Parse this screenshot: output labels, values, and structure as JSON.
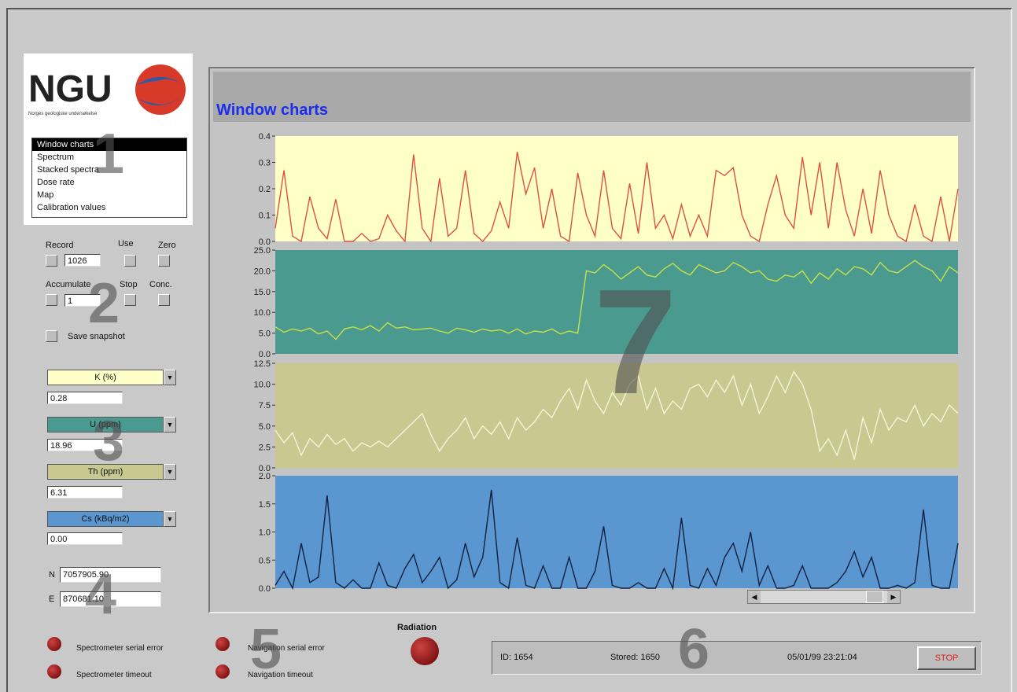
{
  "logo": {
    "text": "NGU",
    "subtitle": "Norges geologiske undersøkelse"
  },
  "menu": {
    "items": [
      "Window charts",
      "Spectrum",
      "Stacked spectra",
      "Dose rate",
      "Map",
      "Calibration values"
    ]
  },
  "controls": {
    "record": {
      "label": "Record",
      "value": "1026"
    },
    "use": "Use",
    "zero": "Zero",
    "accumulate": {
      "label": "Accumulate",
      "value": "1"
    },
    "stop": "Stop",
    "conc": "Conc.",
    "save": "Save snapshot"
  },
  "channels": [
    {
      "name": "K (%)",
      "value": "0.28",
      "color": "#ffffc8"
    },
    {
      "name": "U (ppm)",
      "value": "18.96",
      "color": "#4a9a90"
    },
    {
      "name": "Th (ppm)",
      "value": "6.31",
      "color": "#c8c890"
    },
    {
      "name": "Cs (kBq/m2)",
      "value": "0.00",
      "color": "#5a96d0"
    }
  ],
  "position": {
    "n": {
      "label": "N",
      "value": "7057905.90"
    },
    "e": {
      "label": "E",
      "value": "870681.10"
    }
  },
  "indicators": [
    "Spectrometer serial error",
    "Spectrometer timeout",
    "Navigation serial error",
    "Navigation timeout"
  ],
  "radiation": "Radiation",
  "status": {
    "id": "ID: 1654",
    "stored": "Stored: 1650",
    "time": "05/01/99 23:21:04",
    "stop": "STOP"
  },
  "annotations": [
    "1",
    "2",
    "3",
    "4",
    "5",
    "6",
    "7"
  ],
  "panel": {
    "title": "Window charts",
    "charts": [
      {
        "background": "#ffffc8",
        "color": "#e05040",
        "ylim": [
          0,
          0.4
        ],
        "yticks": [
          {
            "value": 0,
            "label": "0.0"
          },
          {
            "value": 0.1,
            "label": "0.1"
          },
          {
            "value": 0.2,
            "label": "0.2"
          },
          {
            "value": 0.3,
            "label": "0.3"
          },
          {
            "value": 0.4,
            "label": "0.4"
          }
        ],
        "values": [
          0.05,
          0.27,
          0.02,
          0,
          0.17,
          0.05,
          0.01,
          0.16,
          0,
          0,
          0.03,
          0,
          0.01,
          0.1,
          0.04,
          0,
          0.33,
          0.05,
          0,
          0.24,
          0.02,
          0.05,
          0.27,
          0.03,
          0,
          0.04,
          0.15,
          0.05,
          0.34,
          0.18,
          0.28,
          0.05,
          0.2,
          0.02,
          0,
          0.26,
          0.1,
          0.02,
          0.27,
          0.05,
          0.01,
          0.22,
          0.03,
          0.3,
          0.05,
          0.1,
          0.01,
          0.14,
          0.02,
          0.1,
          0.02,
          0.27,
          0.25,
          0.28,
          0.1,
          0.02,
          0,
          0.14,
          0.25,
          0.1,
          0.05,
          0.32,
          0.1,
          0.3,
          0.05,
          0.3,
          0.12,
          0.02,
          0.2,
          0.03,
          0.27,
          0.1,
          0.02,
          0,
          0.14,
          0.02,
          0,
          0.17,
          0,
          0.2
        ]
      },
      {
        "background": "#4a9a90",
        "color": "#c8e048",
        "ylim": [
          0,
          25
        ],
        "yticks": [
          {
            "value": 0,
            "label": "0.0"
          },
          {
            "value": 5,
            "label": "5.0"
          },
          {
            "value": 10,
            "label": "10.0"
          },
          {
            "value": 15,
            "label": "15.0"
          },
          {
            "value": 20,
            "label": "20.0"
          },
          {
            "value": 25,
            "label": "25.0"
          }
        ],
        "values": [
          6.5,
          5.2,
          6.0,
          5.5,
          6.2,
          4.8,
          5.5,
          3.5,
          6.0,
          6.5,
          5.8,
          6.8,
          5.5,
          7.5,
          6.2,
          6.5,
          5.8,
          6.0,
          6.2,
          5.5,
          5.0,
          6.2,
          5.8,
          5.2,
          6.0,
          5.5,
          5.8,
          5.0,
          6.0,
          4.8,
          5.5,
          5.2,
          6.0,
          4.8,
          5.5,
          5.0,
          20.0,
          19.5,
          21.5,
          20.0,
          18.0,
          19.5,
          21.0,
          19.0,
          18.5,
          20.5,
          21.8,
          20.0,
          19.0,
          21.5,
          20.5,
          19.5,
          20.0,
          22.0,
          21.0,
          19.5,
          20.0,
          18.0,
          17.5,
          19.0,
          18.5,
          20.0,
          17.0,
          19.5,
          18.0,
          20.5,
          19.0,
          21.0,
          20.5,
          19.0,
          22.0,
          20.0,
          19.5,
          21.0,
          22.5,
          21.0,
          20.0,
          17.5,
          21.0,
          19.5
        ]
      },
      {
        "background": "#c8c890",
        "color": "#f4f4d8",
        "ylim": [
          0,
          12.5
        ],
        "yticks": [
          {
            "value": 0,
            "label": "0.0"
          },
          {
            "value": 2.5,
            "label": "2.5"
          },
          {
            "value": 5,
            "label": "5.0"
          },
          {
            "value": 7.5,
            "label": "7.5"
          },
          {
            "value": 10,
            "label": "10.0"
          },
          {
            "value": 12.5,
            "label": "12.5"
          }
        ],
        "values": [
          4.5,
          3.0,
          4.2,
          1.5,
          3.5,
          2.5,
          4.0,
          2.8,
          3.5,
          2.0,
          3.0,
          2.5,
          3.2,
          2.5,
          3.5,
          4.5,
          5.5,
          6.5,
          4.0,
          2.0,
          3.5,
          4.5,
          6.0,
          3.5,
          5.0,
          4.0,
          5.5,
          3.5,
          6.0,
          4.5,
          5.5,
          7.0,
          6.0,
          8.0,
          9.5,
          7.0,
          10.5,
          8.0,
          6.5,
          9.0,
          7.5,
          10.0,
          11.0,
          7.0,
          9.5,
          6.5,
          8.0,
          7.0,
          9.5,
          10.0,
          8.5,
          10.5,
          9.0,
          11.0,
          7.5,
          10.0,
          6.5,
          8.5,
          11.0,
          9.0,
          11.5,
          10.0,
          7.0,
          2.0,
          3.5,
          1.5,
          4.5,
          1.0,
          6.0,
          3.0,
          7.0,
          4.5,
          6.0,
          5.5,
          7.5,
          5.0,
          6.5,
          5.5,
          7.5,
          6.5
        ]
      },
      {
        "background": "#5a96d0",
        "color": "#102040",
        "ylim": [
          0,
          2
        ],
        "yticks": [
          {
            "value": 0,
            "label": "0.0"
          },
          {
            "value": 0.5,
            "label": "0.5"
          },
          {
            "value": 1,
            "label": "1.0"
          },
          {
            "value": 1.5,
            "label": "1.5"
          },
          {
            "value": 2,
            "label": "2.0"
          }
        ],
        "values": [
          0.05,
          0.3,
          0.0,
          0.8,
          0.1,
          0.2,
          1.65,
          0.1,
          0.0,
          0.15,
          0.0,
          0.0,
          0.45,
          0.05,
          0.0,
          0.35,
          0.6,
          0.1,
          0.3,
          0.55,
          0.0,
          0.15,
          0.8,
          0.2,
          0.55,
          1.75,
          0.1,
          0.0,
          0.9,
          0.05,
          0.0,
          0.4,
          0.0,
          0.0,
          0.55,
          0.0,
          0.0,
          0.3,
          1.1,
          0.05,
          0.0,
          0.0,
          0.1,
          0.0,
          0.0,
          0.35,
          0.0,
          1.25,
          0.05,
          0.0,
          0.35,
          0.05,
          0.55,
          0.8,
          0.3,
          1.0,
          0.05,
          0.4,
          0.0,
          0.0,
          0.05,
          0.4,
          0.0,
          0.0,
          0.0,
          0.1,
          0.3,
          0.65,
          0.2,
          0.55,
          0.0,
          0.0,
          0.05,
          0.0,
          0.1,
          1.4,
          0.05,
          0.0,
          0.0,
          0.8
        ]
      }
    ]
  }
}
